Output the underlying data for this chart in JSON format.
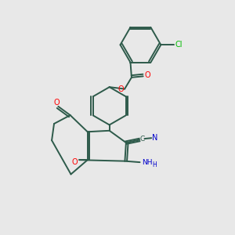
{
  "bg_color": "#e8e8e8",
  "bond_color": "#2d5a4a",
  "atom_colors": {
    "O": "#ff0000",
    "N": "#0000cc",
    "Cl": "#00bb00",
    "C": "#2d5a4a"
  }
}
